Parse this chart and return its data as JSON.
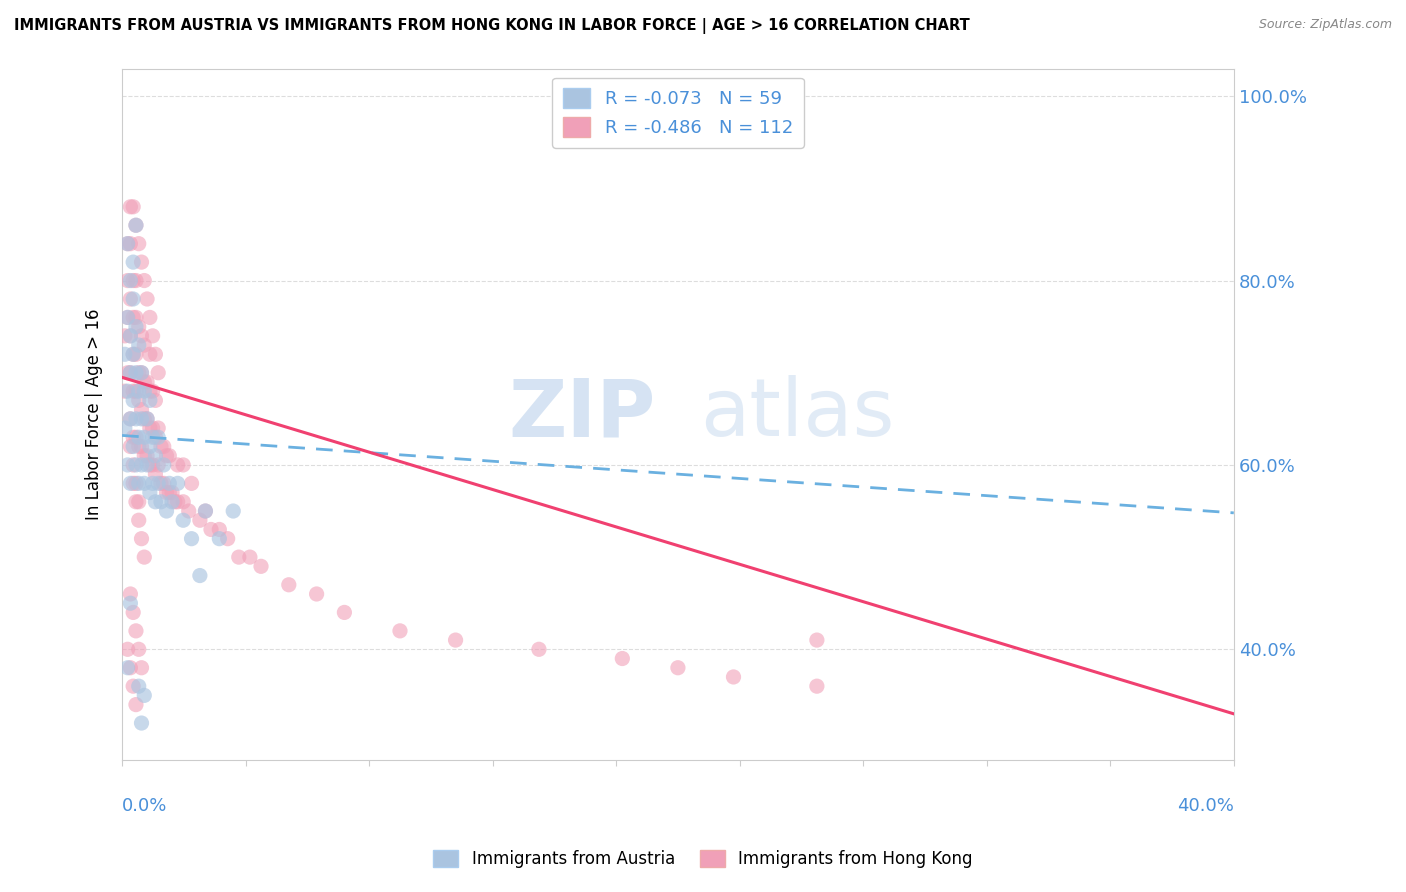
{
  "title": "IMMIGRANTS FROM AUSTRIA VS IMMIGRANTS FROM HONG KONG IN LABOR FORCE | AGE > 16 CORRELATION CHART",
  "source": "Source: ZipAtlas.com",
  "legend_label1": "Immigrants from Austria",
  "legend_label2": "Immigrants from Hong Kong",
  "r1": -0.073,
  "n1": 59,
  "r2": -0.486,
  "n2": 112,
  "color_austria": "#aac4e0",
  "color_hongkong": "#f0a0b8",
  "color_text_blue": "#4a90d9",
  "color_line_austria": "#6ab0e0",
  "color_line_hongkong": "#f04070",
  "xmin": 0.0,
  "xmax": 0.4,
  "ymin": 0.28,
  "ymax": 1.03,
  "yticks": [
    0.4,
    0.6,
    0.8,
    1.0
  ],
  "ytick_labels": [
    "40.0%",
    "60.0%",
    "80.0%",
    "100.0%"
  ],
  "watermark_zip": "ZIP",
  "watermark_atlas": "atlas",
  "trend_austria_y0": 0.632,
  "trend_austria_y1": 0.548,
  "trend_hk_y0": 0.695,
  "trend_hk_y1": 0.33,
  "austria_scatter_x": [
    0.001,
    0.001,
    0.002,
    0.002,
    0.002,
    0.003,
    0.003,
    0.003,
    0.003,
    0.004,
    0.004,
    0.004,
    0.004,
    0.005,
    0.005,
    0.005,
    0.005,
    0.006,
    0.006,
    0.006,
    0.006,
    0.007,
    0.007,
    0.007,
    0.008,
    0.008,
    0.008,
    0.009,
    0.009,
    0.01,
    0.01,
    0.01,
    0.011,
    0.011,
    0.012,
    0.012,
    0.013,
    0.013,
    0.014,
    0.015,
    0.016,
    0.017,
    0.018,
    0.02,
    0.022,
    0.025,
    0.028,
    0.03,
    0.035,
    0.04,
    0.002,
    0.003,
    0.004,
    0.005,
    0.006,
    0.007,
    0.008,
    0.002,
    0.003
  ],
  "austria_scatter_y": [
    0.64,
    0.72,
    0.68,
    0.76,
    0.6,
    0.65,
    0.7,
    0.74,
    0.58,
    0.62,
    0.67,
    0.72,
    0.78,
    0.6,
    0.65,
    0.7,
    0.75,
    0.58,
    0.63,
    0.68,
    0.73,
    0.6,
    0.65,
    0.7,
    0.58,
    0.63,
    0.68,
    0.6,
    0.65,
    0.57,
    0.62,
    0.67,
    0.58,
    0.63,
    0.56,
    0.61,
    0.58,
    0.63,
    0.56,
    0.6,
    0.55,
    0.58,
    0.56,
    0.58,
    0.54,
    0.52,
    0.48,
    0.55,
    0.52,
    0.55,
    0.84,
    0.8,
    0.82,
    0.86,
    0.36,
    0.32,
    0.35,
    0.38,
    0.45
  ],
  "hongkong_scatter_x": [
    0.001,
    0.001,
    0.002,
    0.002,
    0.002,
    0.002,
    0.003,
    0.003,
    0.003,
    0.003,
    0.003,
    0.004,
    0.004,
    0.004,
    0.004,
    0.004,
    0.005,
    0.005,
    0.005,
    0.005,
    0.005,
    0.006,
    0.006,
    0.006,
    0.006,
    0.007,
    0.007,
    0.007,
    0.007,
    0.008,
    0.008,
    0.008,
    0.008,
    0.009,
    0.009,
    0.009,
    0.01,
    0.01,
    0.01,
    0.01,
    0.011,
    0.011,
    0.011,
    0.012,
    0.012,
    0.012,
    0.013,
    0.013,
    0.014,
    0.014,
    0.015,
    0.015,
    0.016,
    0.016,
    0.017,
    0.017,
    0.018,
    0.019,
    0.02,
    0.02,
    0.022,
    0.022,
    0.024,
    0.025,
    0.028,
    0.03,
    0.032,
    0.035,
    0.038,
    0.042,
    0.046,
    0.05,
    0.06,
    0.07,
    0.08,
    0.1,
    0.12,
    0.15,
    0.18,
    0.2,
    0.22,
    0.25,
    0.003,
    0.004,
    0.005,
    0.006,
    0.007,
    0.008,
    0.009,
    0.01,
    0.011,
    0.012,
    0.013,
    0.004,
    0.005,
    0.006,
    0.007,
    0.008,
    0.003,
    0.004,
    0.005,
    0.006,
    0.007,
    0.002,
    0.003,
    0.004,
    0.005,
    0.25,
    0.003,
    0.004,
    0.005,
    0.006
  ],
  "hongkong_scatter_y": [
    0.68,
    0.74,
    0.7,
    0.76,
    0.8,
    0.84,
    0.65,
    0.7,
    0.74,
    0.78,
    0.84,
    0.63,
    0.68,
    0.72,
    0.76,
    0.8,
    0.63,
    0.68,
    0.72,
    0.76,
    0.8,
    0.62,
    0.67,
    0.7,
    0.75,
    0.62,
    0.66,
    0.7,
    0.74,
    0.61,
    0.65,
    0.69,
    0.73,
    0.61,
    0.65,
    0.69,
    0.6,
    0.64,
    0.68,
    0.72,
    0.6,
    0.64,
    0.68,
    0.59,
    0.63,
    0.67,
    0.6,
    0.64,
    0.58,
    0.62,
    0.58,
    0.62,
    0.57,
    0.61,
    0.57,
    0.61,
    0.57,
    0.56,
    0.56,
    0.6,
    0.56,
    0.6,
    0.55,
    0.58,
    0.54,
    0.55,
    0.53,
    0.53,
    0.52,
    0.5,
    0.5,
    0.49,
    0.47,
    0.46,
    0.44,
    0.42,
    0.41,
    0.4,
    0.39,
    0.38,
    0.37,
    0.36,
    0.88,
    0.88,
    0.86,
    0.84,
    0.82,
    0.8,
    0.78,
    0.76,
    0.74,
    0.72,
    0.7,
    0.58,
    0.56,
    0.54,
    0.52,
    0.5,
    0.46,
    0.44,
    0.42,
    0.4,
    0.38,
    0.4,
    0.38,
    0.36,
    0.34,
    0.41,
    0.62,
    0.6,
    0.58,
    0.56
  ]
}
